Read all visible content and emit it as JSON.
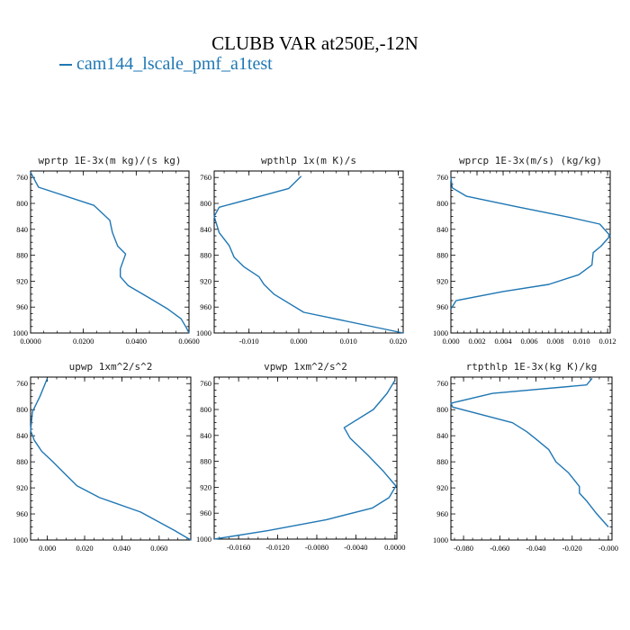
{
  "title": "CLUBB VAR at250E,-12N",
  "legend": {
    "label": "cam144_lscale_pmf_a1test",
    "color": "#1f77b4"
  },
  "chart_data": [
    {
      "type": "line",
      "title": "wprtp  1E-3x(m kg)/(s kg)",
      "xlim": [
        0.0,
        0.06
      ],
      "ylim": [
        1000,
        750
      ],
      "xticks": [
        0.0,
        0.02,
        0.04,
        0.06
      ],
      "xtick_labels": [
        "0.0000",
        "0.0200",
        "0.0400",
        "0.0600"
      ],
      "yticks": [
        760,
        800,
        840,
        880,
        920,
        960,
        1000
      ],
      "series": [
        {
          "color": "#1f77b4",
          "x": [
            0.0,
            0.003,
            0.024,
            0.03,
            0.031,
            0.033,
            0.036,
            0.034,
            0.034,
            0.037,
            0.045,
            0.052,
            0.057,
            0.059,
            0.06
          ],
          "y": [
            752,
            775,
            803,
            826,
            845,
            866,
            878,
            901,
            913,
            927,
            946,
            963,
            978,
            992,
            1000
          ]
        }
      ]
    },
    {
      "type": "line",
      "title": "wpthlp  1x(m K)/s",
      "xlim": [
        -0.017,
        0.021
      ],
      "ylim": [
        1000,
        750
      ],
      "xticks": [
        -0.01,
        0.0,
        0.01,
        0.02
      ],
      "xtick_labels": [
        "-0.010",
        "0.000",
        "0.010",
        "0.020"
      ],
      "yticks": [
        760,
        800,
        840,
        880,
        920,
        960,
        1000
      ],
      "series": [
        {
          "color": "#1f77b4",
          "x": [
            0.0005,
            -0.002,
            -0.016,
            -0.017,
            -0.016,
            -0.014,
            -0.013,
            -0.011,
            -0.008,
            -0.007,
            -0.005,
            0.001,
            0.021
          ],
          "y": [
            758,
            777,
            806,
            820,
            845,
            865,
            883,
            898,
            913,
            925,
            940,
            968,
            1000
          ]
        }
      ]
    },
    {
      "type": "line",
      "title": "wprcp  1E-3x(m/s) (kg/kg)",
      "xlim": [
        0.0,
        0.0122
      ],
      "ylim": [
        1000,
        750
      ],
      "xticks": [
        0.0,
        0.002,
        0.004,
        0.006,
        0.008,
        0.01,
        0.012
      ],
      "xtick_labels": [
        "0.000",
        "0.002",
        "0.004",
        "0.006",
        "0.008",
        "0.010",
        "0.012"
      ],
      "yticks": [
        760,
        800,
        840,
        880,
        920,
        960,
        1000
      ],
      "series": [
        {
          "color": "#1f77b4",
          "x": [
            0.0,
            0.0001,
            0.0012,
            0.005,
            0.0092,
            0.0114,
            0.0122,
            0.0115,
            0.0109,
            0.0108,
            0.0098,
            0.0075,
            0.004,
            0.0004,
            0.0
          ],
          "y": [
            760,
            776,
            789,
            805,
            822,
            832,
            850,
            866,
            876,
            895,
            910,
            925,
            936,
            950,
            963
          ]
        }
      ]
    },
    {
      "type": "line",
      "title": "upwp  1xm^2/s^2",
      "xlim": [
        -0.009,
        0.077
      ],
      "ylim": [
        1000,
        750
      ],
      "xticks": [
        0.0,
        0.02,
        0.04,
        0.06
      ],
      "xtick_labels": [
        "0.000",
        "0.020",
        "0.040",
        "0.060"
      ],
      "yticks": [
        760,
        800,
        840,
        880,
        920,
        960,
        1000
      ],
      "series": [
        {
          "color": "#1f77b4",
          "x": [
            0.0,
            -0.004,
            -0.008,
            -0.009,
            -0.007,
            -0.003,
            0.003,
            0.01,
            0.016,
            0.028,
            0.05,
            0.068,
            0.077
          ],
          "y": [
            752,
            780,
            803,
            832,
            847,
            864,
            880,
            900,
            917,
            935,
            957,
            985,
            1000
          ]
        }
      ]
    },
    {
      "type": "line",
      "title": "vpwp  1xm^2/s^2",
      "xlim": [
        -0.0185,
        0.0002
      ],
      "ylim": [
        1000,
        750
      ],
      "xticks": [
        -0.016,
        -0.012,
        -0.008,
        -0.004,
        0.0
      ],
      "xtick_labels": [
        "-0.0160",
        "-0.0120",
        "-0.0080",
        "-0.0040",
        "0.0000"
      ],
      "yticks": [
        760,
        800,
        840,
        880,
        920,
        960,
        1000
      ],
      "series": [
        {
          "color": "#1f77b4",
          "x": [
            0.0,
            -0.0008,
            -0.0022,
            -0.0052,
            -0.0046,
            -0.0028,
            -0.0012,
            0.0001,
            -0.0006,
            -0.0023,
            -0.007,
            -0.013,
            -0.0185
          ],
          "y": [
            755,
            775,
            800,
            828,
            844,
            870,
            895,
            918,
            936,
            952,
            970,
            987,
            1000
          ]
        }
      ]
    },
    {
      "type": "line",
      "title": "rtpthlp  1E-3x(kg K)/kg",
      "xlim": [
        -0.087,
        0.002
      ],
      "ylim": [
        1000,
        750
      ],
      "xticks": [
        -0.08,
        -0.06,
        -0.04,
        -0.02,
        0.0
      ],
      "xtick_labels": [
        "-0.080",
        "-0.060",
        "-0.040",
        "-0.020",
        "-0.000"
      ],
      "yticks": [
        760,
        800,
        840,
        880,
        920,
        960,
        1000
      ],
      "series": [
        {
          "color": "#1f77b4",
          "x": [
            -0.009,
            -0.012,
            -0.064,
            -0.087,
            -0.086,
            -0.053,
            -0.045,
            -0.04,
            -0.033,
            -0.029,
            -0.022,
            -0.016,
            -0.016,
            -0.012,
            -0.007,
            0.0
          ],
          "y": [
            752,
            762,
            775,
            790,
            796,
            820,
            834,
            845,
            861,
            880,
            897,
            918,
            928,
            940,
            958,
            980
          ]
        }
      ]
    }
  ]
}
